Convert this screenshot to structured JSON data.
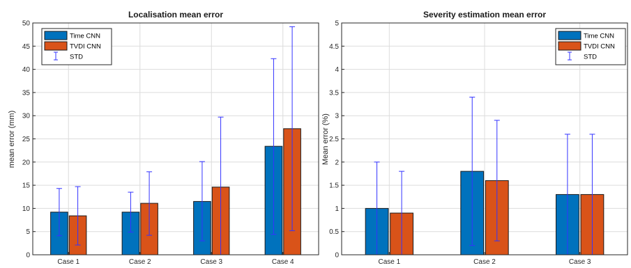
{
  "colors": {
    "time_cnn": "#0072BD",
    "tvdi_cnn": "#D95319",
    "std": "#3333ff"
  },
  "chart_data": [
    {
      "type": "bar",
      "title": "Localisation mean error",
      "xlabel": "",
      "ylabel": "mean error (mm)",
      "categories": [
        "Case 1",
        "Case 2",
        "Case 3",
        "Case 4"
      ],
      "ylim": [
        0,
        50
      ],
      "yticks": [
        "0",
        "5",
        "10",
        "15",
        "20",
        "25",
        "30",
        "35",
        "40",
        "45",
        "50"
      ],
      "grid": true,
      "legend_position": "top-left",
      "legend": [
        "Time CNN",
        "TVDI CNN",
        "STD"
      ],
      "series": [
        {
          "name": "Time CNN",
          "values": [
            9.2,
            9.2,
            11.5,
            23.4
          ],
          "std_low": [
            4.1,
            4.9,
            3.0,
            4.4
          ],
          "std_high": [
            14.3,
            13.5,
            20.1,
            42.3
          ]
        },
        {
          "name": "TVDI CNN",
          "values": [
            8.4,
            11.1,
            14.6,
            27.2
          ],
          "std_low": [
            2.1,
            4.2,
            0.0,
            5.2
          ],
          "std_high": [
            14.7,
            17.9,
            29.7,
            49.2
          ]
        }
      ]
    },
    {
      "type": "bar",
      "title": "Severity estimation mean error",
      "xlabel": "",
      "ylabel": "Mean error (%)",
      "categories": [
        "Case 1",
        "Case 2",
        "Case 3"
      ],
      "ylim": [
        0,
        5
      ],
      "yticks": [
        "0",
        "0.5",
        "1",
        "1.5",
        "2",
        "2.5",
        "3",
        "3.5",
        "4",
        "4.5",
        "5"
      ],
      "grid": true,
      "legend_position": "top-right",
      "legend": [
        "Time CNN",
        "TVDI CNN",
        "STD"
      ],
      "series": [
        {
          "name": "Time CNN",
          "values": [
            1.0,
            1.8,
            1.3
          ],
          "std_low": [
            0.0,
            0.2,
            0.0
          ],
          "std_high": [
            2.0,
            3.4,
            2.6
          ]
        },
        {
          "name": "TVDI CNN",
          "values": [
            0.9,
            1.6,
            1.3
          ],
          "std_low": [
            0.0,
            0.3,
            0.0
          ],
          "std_high": [
            1.8,
            2.9,
            2.6
          ]
        }
      ]
    }
  ]
}
